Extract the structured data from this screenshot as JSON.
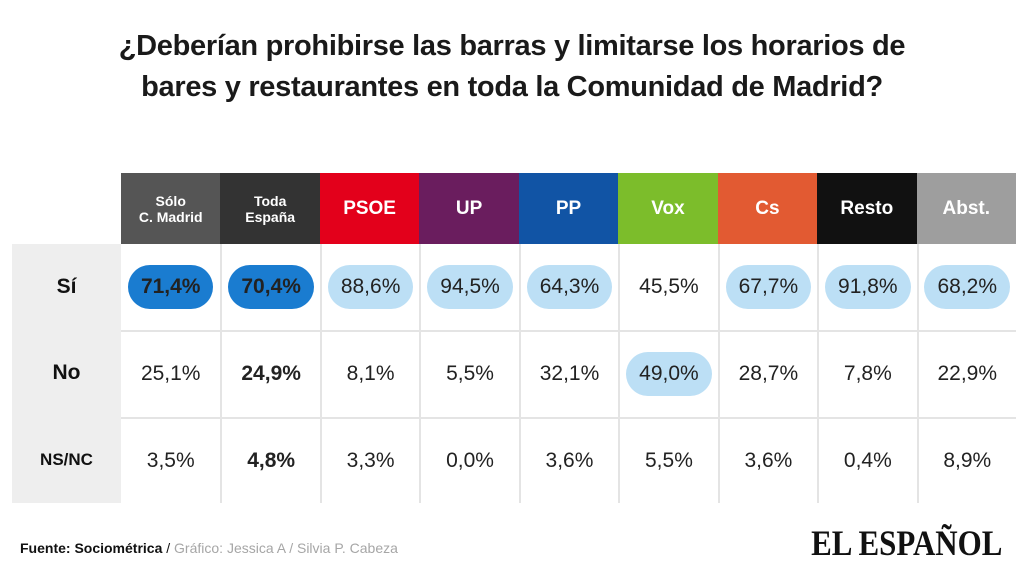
{
  "title_lines": [
    "¿Deberían prohibirse las barras y limitarse los horarios de",
    "bares y restaurantes en toda la Comunidad de Madrid?"
  ],
  "chart_data": {
    "type": "table",
    "columns": [
      {
        "label": "Sólo\nC. Madrid",
        "color": "#555555",
        "small": true
      },
      {
        "label": "Toda\nEspaña",
        "color": "#333333",
        "small": true
      },
      {
        "label": "PSOE",
        "color": "#e3001b"
      },
      {
        "label": "UP",
        "color": "#6a1d5e"
      },
      {
        "label": "PP",
        "color": "#1154a5"
      },
      {
        "label": "Vox",
        "color": "#7cbd2b"
      },
      {
        "label": "Cs",
        "color": "#e25a32"
      },
      {
        "label": "Resto",
        "color": "#111111"
      },
      {
        "label": "Abst.",
        "color": "#9e9e9e"
      }
    ],
    "rows": [
      {
        "label": "Sí",
        "values": [
          "71,4%",
          "70,4%",
          "88,6%",
          "94,5%",
          "64,3%",
          "45,5%",
          "67,7%",
          "91,8%",
          "68,2%"
        ]
      },
      {
        "label": "No",
        "values": [
          "25,1%",
          "24,9%",
          "8,1%",
          "5,5%",
          "32,1%",
          "49,0%",
          "28,7%",
          "7,8%",
          "22,9%"
        ]
      },
      {
        "label": "NS/NC",
        "values": [
          "3,5%",
          "4,8%",
          "3,3%",
          "0,0%",
          "3,6%",
          "5,5%",
          "3,6%",
          "0,4%",
          "8,9%"
        ]
      }
    ],
    "highlights": [
      [
        0,
        0,
        "dark"
      ],
      [
        0,
        1,
        "dark"
      ],
      [
        0,
        2,
        "light"
      ],
      [
        0,
        3,
        "light"
      ],
      [
        0,
        4,
        "light"
      ],
      [
        0,
        6,
        "light"
      ],
      [
        0,
        7,
        "light"
      ],
      [
        0,
        8,
        "light"
      ],
      [
        1,
        5,
        "light"
      ]
    ],
    "bold_cells": [
      [
        1,
        1
      ],
      [
        2,
        1
      ]
    ]
  },
  "colors": {
    "pill_light": "#bcdff5",
    "pill_dark": "#1a7cd0"
  },
  "footer": {
    "source": "Fuente: Sociométrica",
    "separator": " / ",
    "credit": "Gráfico: Jessica A / Silvia P. Cabeza"
  },
  "logo_text": "EL ESPAÑOL"
}
